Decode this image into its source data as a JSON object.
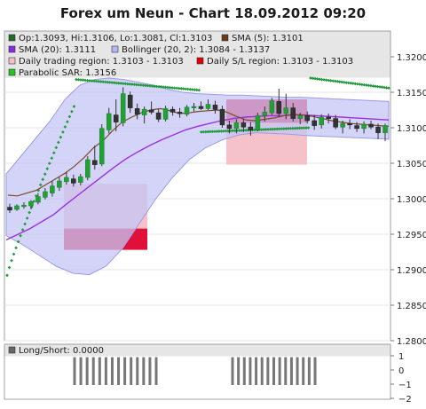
{
  "title": "Forex um Neun - Chart 18.09.2012 09:20",
  "chart_data": {
    "type": "candlestick",
    "main_panel": {
      "y_ticks": [
        "1.3200",
        "1.3150",
        "1.3100",
        "1.3050",
        "1.3000",
        "1.2950",
        "1.2900",
        "1.2850",
        "1.2800"
      ],
      "y_range": [
        1.28,
        1.32
      ],
      "legend": [
        {
          "label": "Op:1.3093, Hi:1.3106, Lo:1.3081, Cl:1.3103",
          "color": "#1e6b2a"
        },
        {
          "label": "SMA (5): 1.3101",
          "color": "#6b3a1e"
        },
        {
          "label": "SMA (20): 1.3111",
          "color": "#8a2be2"
        },
        {
          "label": "Bollinger (20, 2): 1.3084 - 1.3137",
          "color": "#b7b7f4"
        },
        {
          "label": "Daily trading region: 1.3103 - 1.3103",
          "color": "#f3c0c8"
        },
        {
          "label": "Daily S/L region: 1.3103 - 1.3103",
          "color": "#e00000"
        },
        {
          "label": "Parabolic SAR: 1.3156",
          "color": "#22c322"
        }
      ],
      "regions": [
        {
          "kind": "trading",
          "y0": 1.2958,
          "y1": 1.3021
        },
        {
          "kind": "stoploss",
          "y0": 1.2928,
          "y1": 1.2958
        },
        {
          "kind": "trading",
          "y0": 1.3048,
          "y1": 1.3107
        },
        {
          "kind": "stoploss",
          "y0": 1.3107,
          "y1": 1.314
        }
      ],
      "candles": [
        [
          1.2988,
          1.2993,
          1.298,
          1.2984
        ],
        [
          1.2985,
          1.2992,
          1.2983,
          1.299
        ],
        [
          1.2989,
          1.2995,
          1.2986,
          1.2991
        ],
        [
          1.299,
          1.2998,
          1.2985,
          1.2996
        ],
        [
          1.2995,
          1.3008,
          1.2992,
          1.3003
        ],
        [
          1.3002,
          1.3015,
          1.2999,
          1.301
        ],
        [
          1.3008,
          1.3025,
          1.3003,
          1.3018
        ],
        [
          1.3016,
          1.303,
          1.3011,
          1.3025
        ],
        [
          1.3024,
          1.3038,
          1.302,
          1.303
        ],
        [
          1.3028,
          1.3034,
          1.3017,
          1.3022
        ],
        [
          1.3023,
          1.3035,
          1.3019,
          1.3031
        ],
        [
          1.303,
          1.306,
          1.3026,
          1.3055
        ],
        [
          1.3054,
          1.3075,
          1.3041,
          1.3048
        ],
        [
          1.3049,
          1.3105,
          1.3046,
          1.3099
        ],
        [
          1.3097,
          1.3128,
          1.3092,
          1.312
        ],
        [
          1.3118,
          1.314,
          1.3095,
          1.3108
        ],
        [
          1.3107,
          1.3157,
          1.3102,
          1.3148
        ],
        [
          1.3146,
          1.3151,
          1.3121,
          1.3128
        ],
        [
          1.3127,
          1.3134,
          1.3112,
          1.3119
        ],
        [
          1.3118,
          1.313,
          1.3106,
          1.3126
        ],
        [
          1.3125,
          1.3137,
          1.3119,
          1.3122
        ],
        [
          1.3121,
          1.3126,
          1.3108,
          1.3112
        ],
        [
          1.3112,
          1.3131,
          1.3109,
          1.3127
        ],
        [
          1.3126,
          1.313,
          1.3117,
          1.3122
        ],
        [
          1.3122,
          1.3128,
          1.3114,
          1.312
        ],
        [
          1.3119,
          1.3132,
          1.3116,
          1.3129
        ],
        [
          1.3128,
          1.3135,
          1.3123,
          1.313
        ],
        [
          1.313,
          1.3137,
          1.3125,
          1.3127
        ],
        [
          1.3127,
          1.314,
          1.3125,
          1.3133
        ],
        [
          1.3132,
          1.3138,
          1.312,
          1.3126
        ],
        [
          1.3126,
          1.3131,
          1.31,
          1.3104
        ],
        [
          1.3104,
          1.311,
          1.3092,
          1.3099
        ],
        [
          1.3099,
          1.3112,
          1.3092,
          1.3107
        ],
        [
          1.3107,
          1.3113,
          1.3094,
          1.3101
        ],
        [
          1.3101,
          1.3108,
          1.3089,
          1.3097
        ],
        [
          1.3097,
          1.3121,
          1.3095,
          1.3117
        ],
        [
          1.3117,
          1.313,
          1.3109,
          1.3122
        ],
        [
          1.3121,
          1.3142,
          1.3118,
          1.3138
        ],
        [
          1.3137,
          1.3155,
          1.3115,
          1.312
        ],
        [
          1.312,
          1.3148,
          1.3112,
          1.3128
        ],
        [
          1.3128,
          1.3135,
          1.3109,
          1.3113
        ],
        [
          1.3113,
          1.3121,
          1.3105,
          1.3117
        ],
        [
          1.3117,
          1.3123,
          1.3106,
          1.311
        ],
        [
          1.311,
          1.3118,
          1.3097,
          1.3103
        ],
        [
          1.3104,
          1.3119,
          1.3099,
          1.3115
        ],
        [
          1.3115,
          1.312,
          1.3106,
          1.3113
        ],
        [
          1.3113,
          1.3118,
          1.3098,
          1.3101
        ],
        [
          1.3101,
          1.311,
          1.3092,
          1.3106
        ],
        [
          1.3106,
          1.3112,
          1.3098,
          1.3104
        ],
        [
          1.3103,
          1.3108,
          1.3094,
          1.3099
        ],
        [
          1.3099,
          1.3109,
          1.3092,
          1.3105
        ],
        [
          1.3105,
          1.311,
          1.3098,
          1.3101
        ],
        [
          1.3101,
          1.3106,
          1.3084,
          1.3093
        ],
        [
          1.3093,
          1.3106,
          1.3081,
          1.3103
        ]
      ],
      "sma5": [
        1.3005,
        1.3004,
        1.3008,
        1.3012,
        1.302,
        1.3028,
        1.3036,
        1.3046,
        1.3058,
        1.3072,
        1.3082,
        1.3096,
        1.3108,
        1.3115,
        1.3121,
        1.3125,
        1.3127,
        1.3124,
        1.312,
        1.3121,
        1.3123,
        1.3124,
        1.3125,
        1.3122,
        1.3116,
        1.3111,
        1.311,
        1.3112,
        1.3114,
        1.3117,
        1.3119,
        1.3118,
        1.3116,
        1.3113,
        1.311,
        1.3108,
        1.3106,
        1.3105,
        1.3104,
        1.3103,
        1.3102
      ],
      "sma20": [
        1.2942,
        1.295,
        1.2958,
        1.2968,
        1.2978,
        1.2992,
        1.3005,
        1.3018,
        1.3031,
        1.3044,
        1.3056,
        1.3066,
        1.3075,
        1.3083,
        1.309,
        1.3097,
        1.3102,
        1.3106,
        1.311,
        1.3113,
        1.3115,
        1.3116,
        1.3117,
        1.3117,
        1.3118,
        1.3118,
        1.3117,
        1.3116,
        1.3115,
        1.3114,
        1.3113,
        1.3112,
        1.3111
      ],
      "bollinger_upper": [
        1.3035,
        1.306,
        1.3085,
        1.311,
        1.314,
        1.316,
        1.3168,
        1.317,
        1.3168,
        1.3164,
        1.316,
        1.3154,
        1.315,
        1.3148,
        1.3147,
        1.3146,
        1.3146,
        1.3145,
        1.3144,
        1.3143,
        1.3143,
        1.3142,
        1.3141,
        1.314,
        1.3139,
        1.3138,
        1.3137
      ],
      "bollinger_lower": [
        1.2948,
        1.2935,
        1.292,
        1.2905,
        1.2895,
        1.2893,
        1.2905,
        1.293,
        1.2965,
        1.3,
        1.303,
        1.3055,
        1.3072,
        1.3083,
        1.309,
        1.3093,
        1.3092,
        1.3091,
        1.3089,
        1.3088,
        1.3087,
        1.3086,
        1.3085,
        1.3084
      ],
      "psar_segments": [
        {
          "y_start": 1.2892,
          "y_end": 1.313
        },
        {
          "y_start": 1.3168,
          "y_end": 1.3153
        },
        {
          "y_start": 1.3094,
          "y_end": 1.31
        },
        {
          "y_start": 1.317,
          "y_end": 1.3156
        }
      ]
    },
    "sub_panel": {
      "legend": {
        "label": "Long/Short: 0.0000",
        "color": "#666666"
      },
      "y_ticks": [
        "1",
        "0",
        "−1",
        "−2"
      ],
      "y_range": [
        -2,
        1
      ],
      "series_value": -1
    }
  }
}
